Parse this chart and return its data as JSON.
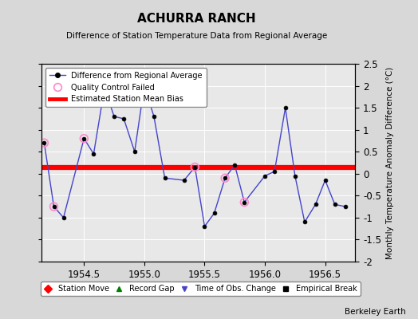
{
  "title": "ACHURRA RANCH",
  "subtitle": "Difference of Station Temperature Data from Regional Average",
  "ylabel": "Monthly Temperature Anomaly Difference (°C)",
  "credit": "Berkeley Earth",
  "xlim": [
    1954.15,
    1956.75
  ],
  "ylim": [
    -2.0,
    2.5
  ],
  "yticks": [
    -2.0,
    -1.5,
    -1.0,
    -0.5,
    0.0,
    0.5,
    1.0,
    1.5,
    2.0,
    2.5
  ],
  "xticks": [
    1954.5,
    1955.0,
    1955.5,
    1956.0,
    1956.5
  ],
  "bias_value": 0.15,
  "data_x": [
    1954.17,
    1954.25,
    1954.33,
    1954.5,
    1954.58,
    1954.67,
    1954.75,
    1954.83,
    1954.92,
    1955.0,
    1955.08,
    1955.17,
    1955.33,
    1955.42,
    1955.5,
    1955.58,
    1955.67,
    1955.75,
    1955.83,
    1956.0,
    1956.08,
    1956.17,
    1956.25,
    1956.33,
    1956.42,
    1956.5,
    1956.58,
    1956.67
  ],
  "data_y": [
    0.7,
    -0.75,
    -1.0,
    0.8,
    0.45,
    1.95,
    1.3,
    1.25,
    0.5,
    2.0,
    1.3,
    -0.1,
    -0.15,
    0.15,
    -1.2,
    -0.9,
    -0.1,
    0.2,
    -0.65,
    -0.05,
    0.05,
    1.5,
    -0.05,
    -1.1,
    -0.7,
    -0.15,
    -0.7,
    -0.75
  ],
  "qc_failed_x": [
    1954.17,
    1954.25,
    1954.5,
    1955.42,
    1955.67,
    1955.83
  ],
  "qc_failed_y": [
    0.7,
    -0.75,
    0.8,
    0.15,
    -0.1,
    -0.65
  ],
  "line_color": "#4444cc",
  "marker_color": "black",
  "qc_color": "#ff88cc",
  "bias_color": "red",
  "bg_color": "#d8d8d8",
  "plot_bg_color": "#e8e8e8",
  "grid_color": "#bbbbbb"
}
